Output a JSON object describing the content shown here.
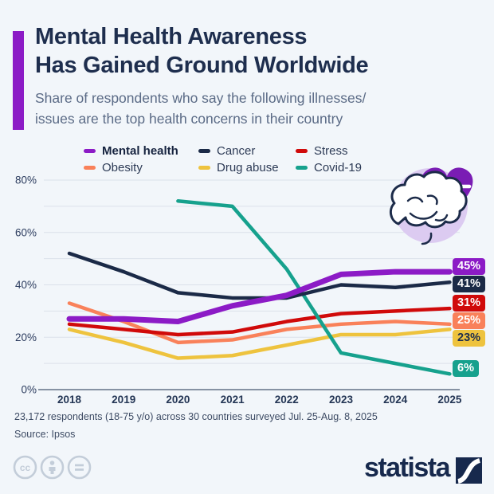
{
  "header": {
    "title_line1": "Mental Health Awareness",
    "title_line2": "Has Gained Ground Worldwide",
    "subtitle_line1": "Share of respondents who say the following illnesses/",
    "subtitle_line2": "issues are the top health concerns in their country",
    "accent_color": "#8c1bc6"
  },
  "chart_data": {
    "type": "line",
    "x": [
      2018,
      2019,
      2020,
      2021,
      2022,
      2023,
      2024,
      2025
    ],
    "series": [
      {
        "name": "Mental health",
        "color": "#8c1bc6",
        "values": [
          27,
          27,
          26,
          32,
          36,
          44,
          45,
          45
        ],
        "end_label": "45%",
        "label_text_color": "#ffffff"
      },
      {
        "name": "Cancer",
        "color": "#1b2a47",
        "values": [
          52,
          45,
          37,
          35,
          35,
          40,
          39,
          41
        ],
        "end_label": "41%",
        "label_text_color": "#ffffff"
      },
      {
        "name": "Stress",
        "color": "#d00a0a",
        "values": [
          25,
          23,
          21,
          22,
          26,
          29,
          30,
          31
        ],
        "end_label": "31%",
        "label_text_color": "#ffffff"
      },
      {
        "name": "Obesity",
        "color": "#f9815a",
        "values": [
          33,
          26,
          18,
          19,
          23,
          25,
          26,
          25
        ],
        "end_label": "25%",
        "label_text_color": "#ffffff"
      },
      {
        "name": "Drug abuse",
        "color": "#eec33e",
        "values": [
          23,
          18,
          12,
          13,
          17,
          21,
          21,
          23
        ],
        "end_label": "23%",
        "label_text_color": "#1e2e4e"
      },
      {
        "name": "Covid-19",
        "color": "#16a18d",
        "values": [
          null,
          null,
          72,
          70,
          46,
          14,
          10,
          6
        ],
        "end_label": "6%",
        "label_text_color": "#ffffff"
      }
    ],
    "ylim": [
      0,
      80
    ],
    "ytick_labels": [
      "0%",
      "20%",
      "40%",
      "60%",
      "80%"
    ],
    "ytick_values": [
      0,
      20,
      40,
      60,
      80
    ],
    "gridline_step_percent": 10,
    "legend_position": "top",
    "legend_rows": [
      [
        "Mental health",
        "Cancer",
        "Stress"
      ],
      [
        "Obesity",
        "Drug abuse",
        "Covid-19"
      ]
    ],
    "title": "Mental Health Awareness Has Gained Ground Worldwide"
  },
  "footer": {
    "note": "23,172 respondents (18-75 y/o) across 30 countries surveyed Jul. 25-Aug. 8, 2025",
    "source": "Source: Ipsos"
  },
  "branding": {
    "logo_text": "statista",
    "license_icons": [
      "cc",
      "attribution",
      "no-derivatives"
    ]
  }
}
